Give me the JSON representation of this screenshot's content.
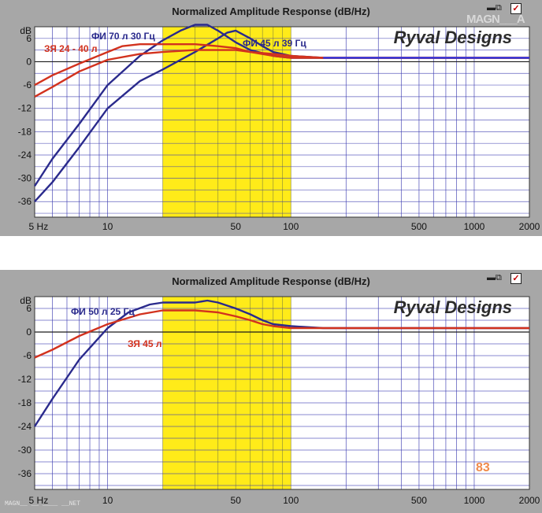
{
  "colors": {
    "panel_bg": "#a7a7a7",
    "plot_bg": "#ffffff",
    "grid": "#3b3bb0",
    "highlight": "#ffeb19",
    "highlight_lines": "#8a8a3a",
    "zero_line": "#1a1a1a",
    "flat_blue": "#1e3cff",
    "blue_series": "#2a2a8c",
    "red_series": "#d2321e"
  },
  "icons": {
    "restore": "window-restore-icon",
    "close": "window-close-checkbox-icon"
  },
  "brand": "MAGN___A",
  "watermark": "MAGN__ __ ____ __NET",
  "chart_data": [
    {
      "type": "line",
      "title": "Normalized Amplitude Response (dB/Hz)",
      "brand_label": "Ryval Designs",
      "x_scale": "log",
      "xlim": [
        4,
        2000
      ],
      "ylim": [
        -40,
        9
      ],
      "x_ticks": [
        5,
        10,
        50,
        100,
        500,
        1000,
        2000
      ],
      "x_tick_labels": [
        "5 Hz",
        "10",
        "50",
        "100",
        "500",
        "1000",
        "2000"
      ],
      "y_ticks": [
        6,
        0,
        -6,
        -12,
        -18,
        -24,
        -30,
        -36
      ],
      "y_tick_labels": [
        "6",
        "0",
        "-6",
        "-12",
        "-18",
        "-24",
        "-30",
        "-36"
      ],
      "y_unit_label": "dB",
      "highlight_band": [
        20,
        100
      ],
      "grid": true,
      "annotations": [
        {
          "text": "ФИ 70 л 30 Гц",
          "color": "blue"
        },
        {
          "text": "ЗЯ 24 - 40 л",
          "color": "red"
        },
        {
          "text": "ФИ 45 л 39 Гц",
          "color": "blue"
        }
      ],
      "series": [
        {
          "color": "blue",
          "x": [
            4,
            5,
            7,
            10,
            15,
            20,
            25,
            30,
            35,
            40,
            50,
            60,
            80,
            100,
            150,
            200,
            2000
          ],
          "y": [
            -32,
            -25,
            -16,
            -6,
            1.5,
            5.5,
            8,
            9.5,
            9.5,
            8,
            5,
            3,
            1.5,
            1,
            1,
            1,
            1
          ]
        },
        {
          "color": "blue",
          "x": [
            4,
            5,
            7,
            10,
            15,
            20,
            30,
            40,
            45,
            50,
            60,
            70,
            80,
            100,
            150,
            200,
            2000
          ],
          "y": [
            -36,
            -31,
            -22,
            -12,
            -5,
            -2,
            2.5,
            6,
            7.5,
            8,
            6,
            4,
            2.5,
            1.5,
            1,
            1,
            1
          ]
        },
        {
          "color": "red",
          "x": [
            4,
            5,
            7,
            10,
            12,
            15,
            20,
            30,
            40,
            50,
            60,
            80,
            100,
            150,
            200,
            2000
          ],
          "y": [
            -6,
            -3.5,
            -0.5,
            2.5,
            4,
            4.5,
            4.5,
            4.5,
            4,
            3.5,
            2.5,
            1.5,
            1,
            1,
            1,
            1
          ]
        },
        {
          "color": "red",
          "x": [
            4,
            5,
            7,
            10,
            15,
            20,
            30,
            40,
            50,
            60,
            80,
            100,
            150,
            200,
            2000
          ],
          "y": [
            -9,
            -6.5,
            -2.5,
            0.5,
            2,
            2.5,
            3,
            3,
            3,
            2.5,
            2,
            1.5,
            1,
            1,
            1
          ]
        },
        {
          "color": "flat",
          "x": [
            150,
            2000
          ],
          "y": [
            1,
            1
          ]
        }
      ]
    },
    {
      "type": "line",
      "title": "Normalized Amplitude Response (dB/Hz)",
      "brand_label": "Ryval Designs",
      "x_scale": "log",
      "xlim": [
        4,
        2000
      ],
      "ylim": [
        -40,
        9
      ],
      "x_ticks": [
        5,
        10,
        50,
        100,
        500,
        1000,
        2000
      ],
      "x_tick_labels": [
        "5 Hz",
        "10",
        "50",
        "100",
        "500",
        "1000",
        "2000"
      ],
      "y_ticks": [
        6,
        0,
        -6,
        -12,
        -18,
        -24,
        -30,
        -36
      ],
      "y_tick_labels": [
        "6",
        "0",
        "-6",
        "-12",
        "-18",
        "-24",
        "-30",
        "-36"
      ],
      "y_unit_label": "dB",
      "highlight_band": [
        20,
        100
      ],
      "grid": true,
      "corner_label": "83",
      "annotations": [
        {
          "text": "ФИ 50 л 25 Гц",
          "color": "blue"
        },
        {
          "text": "ЗЯ 45 л",
          "color": "red"
        }
      ],
      "series": [
        {
          "color": "blue",
          "x": [
            4,
            5,
            7,
            10,
            13,
            17,
            20,
            30,
            35,
            40,
            50,
            60,
            70,
            80,
            100,
            150,
            200,
            2000
          ],
          "y": [
            -24,
            -17,
            -7,
            1,
            5,
            7,
            7.5,
            7.5,
            8,
            7.5,
            6,
            4.5,
            3,
            2,
            1.5,
            1,
            1,
            1
          ]
        },
        {
          "color": "red",
          "x": [
            4,
            5,
            7,
            10,
            15,
            20,
            30,
            40,
            50,
            60,
            70,
            80,
            100,
            150,
            200,
            2000
          ],
          "y": [
            -6.5,
            -4.5,
            -1,
            2,
            4.5,
            5.5,
            5.5,
            5,
            4,
            3,
            2,
            1.5,
            1,
            1,
            1,
            1
          ]
        }
      ]
    }
  ]
}
